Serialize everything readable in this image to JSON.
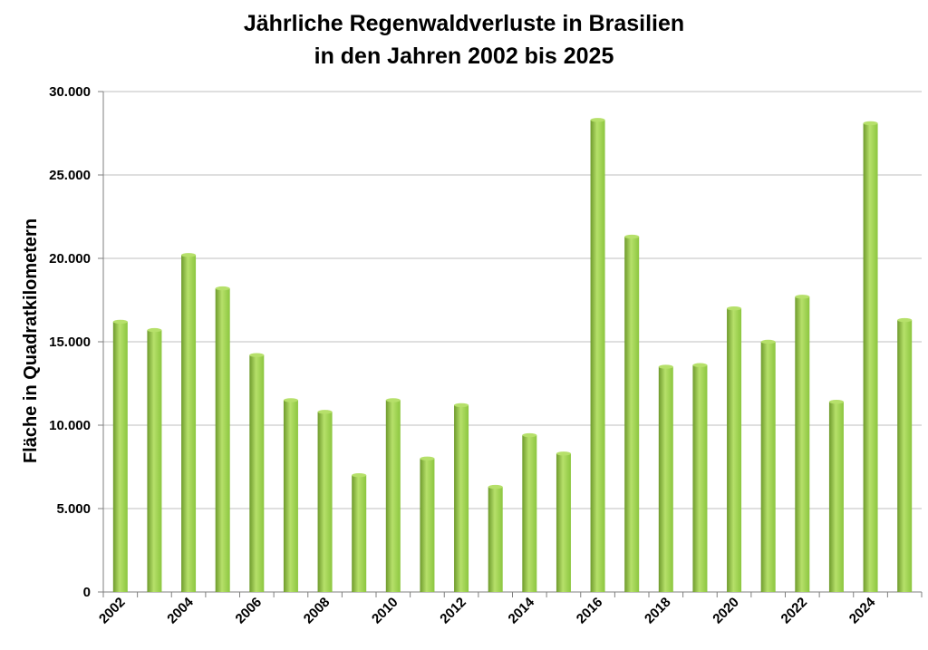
{
  "chart_data": {
    "type": "bar",
    "title_lines": [
      "Jährliche Regenwaldverluste in Brasilien",
      "in den Jahren 2002 bis 2025"
    ],
    "xlabel": "",
    "ylabel": "Fläche in Quadratkilometern",
    "ylim": [
      0,
      30000
    ],
    "yticks": [
      0,
      5000,
      10000,
      15000,
      20000,
      25000,
      30000
    ],
    "ytick_labels": [
      "0",
      "5.000",
      "10.000",
      "15.000",
      "20.000",
      "25.000",
      "30.000"
    ],
    "categories": [
      "2002",
      "2003",
      "2004",
      "2005",
      "2006",
      "2007",
      "2008",
      "2009",
      "2010",
      "2011",
      "2012",
      "2013",
      "2014",
      "2015",
      "2016",
      "2017",
      "2018",
      "2019",
      "2020",
      "2021",
      "2022",
      "2023",
      "2024",
      "2025"
    ],
    "xtick_labels": [
      "2002",
      "",
      "2004",
      "",
      "2006",
      "",
      "2008",
      "",
      "2010",
      "",
      "2012",
      "",
      "2014",
      "",
      "2016",
      "",
      "2018",
      "",
      "2020",
      "",
      "2022",
      "",
      "2024",
      ""
    ],
    "values": [
      16200,
      15700,
      20200,
      18200,
      14200,
      11500,
      10800,
      7000,
      11500,
      8000,
      11200,
      6300,
      9400,
      8300,
      28300,
      21300,
      13500,
      13600,
      17000,
      15000,
      17700,
      11400,
      28100,
      16300
    ],
    "grid": true,
    "legend": "none",
    "bar_color": "#8cc63f",
    "bar_color_light": "#b6e06a",
    "bar_color_dark": "#6e9a2c",
    "grid_color": "#bfbfbf",
    "axis_color": "#7f7f7f"
  }
}
